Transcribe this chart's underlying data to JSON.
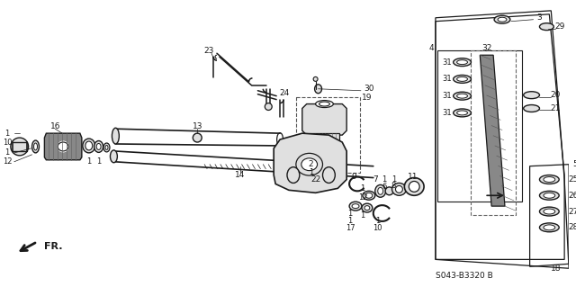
{
  "bg_color": "#ffffff",
  "diagram_code": "S043-B3320 B",
  "line_color": "#1a1a1a",
  "gray_fill": "#c8c8c8",
  "light_gray": "#e0e0e0",
  "dark_gray": "#888888"
}
